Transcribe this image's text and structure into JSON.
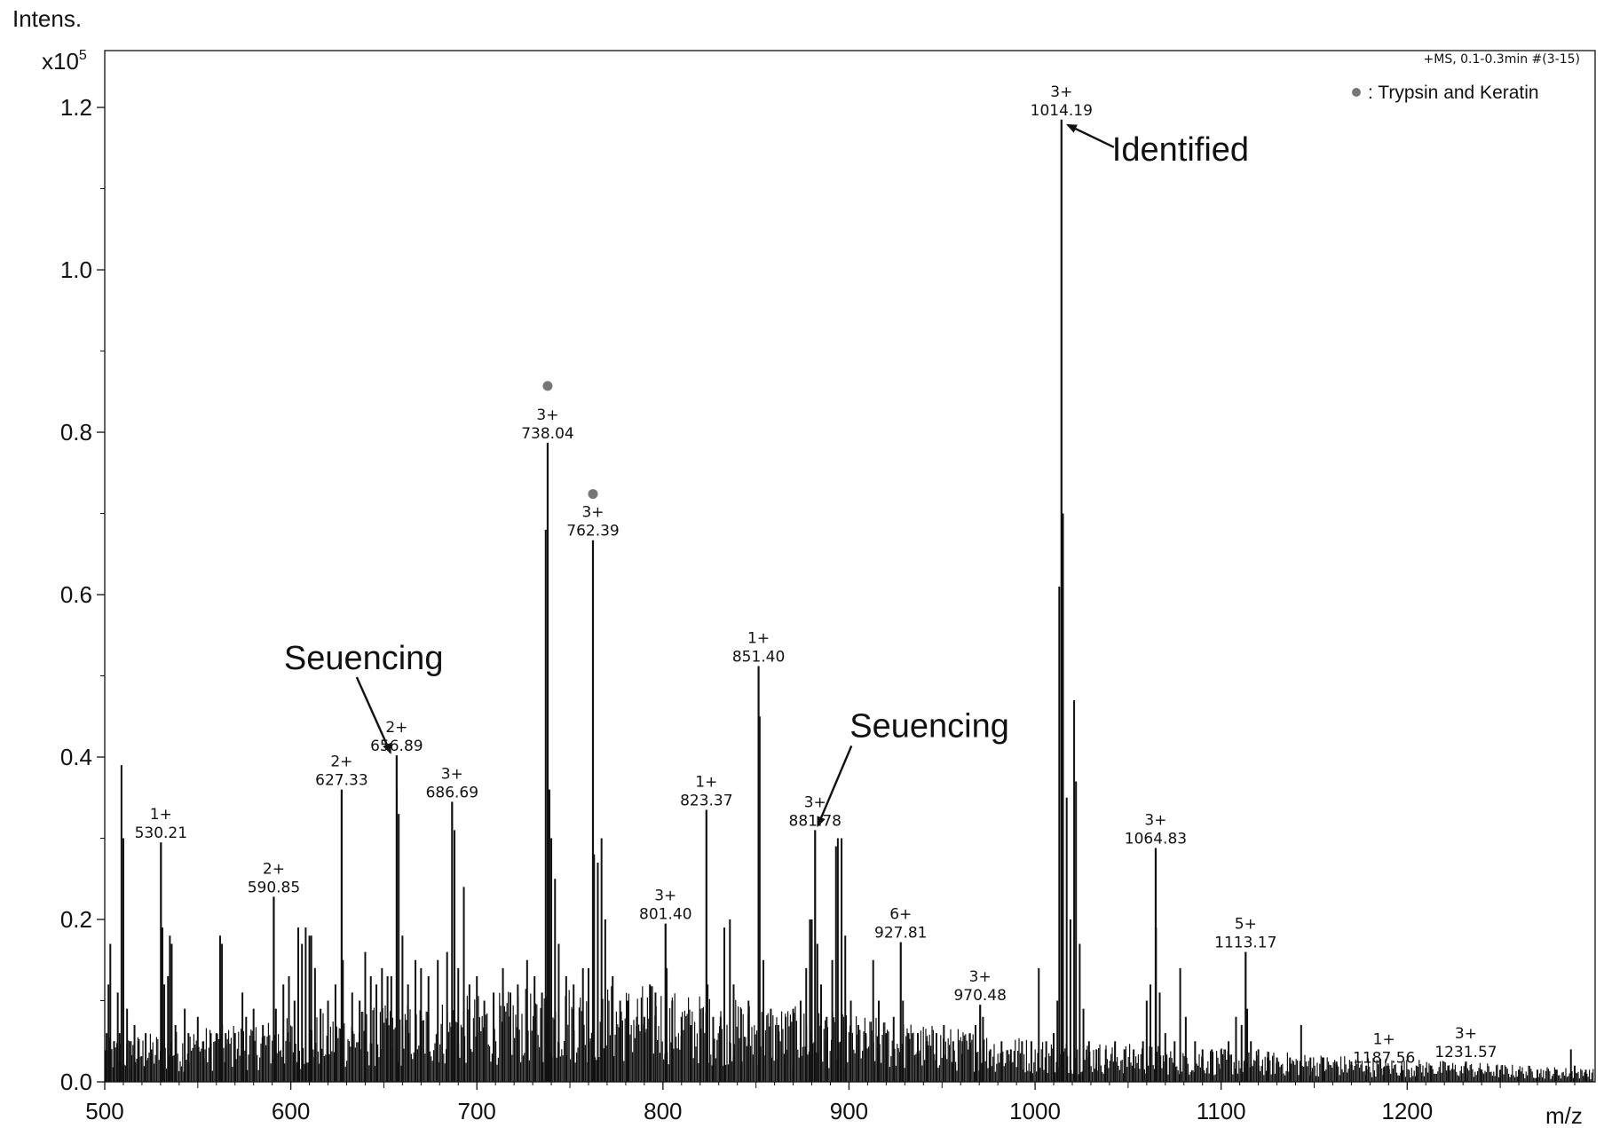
{
  "chart_data": {
    "type": "bar",
    "title": "",
    "xlabel": "m/z",
    "ylabel": "Intens.",
    "y_multiplier": "x10",
    "y_multiplier_exp": "5",
    "xlim": [
      500,
      1301
    ],
    "ylim": [
      0,
      1.27
    ],
    "x_ticks": [
      {
        "value": 500,
        "label": "500"
      },
      {
        "value": 600,
        "label": "600"
      },
      {
        "value": 700,
        "label": "700"
      },
      {
        "value": 800,
        "label": "800"
      },
      {
        "value": 900,
        "label": "900"
      },
      {
        "value": 1000,
        "label": "1000"
      },
      {
        "value": 1100,
        "label": "1100"
      },
      {
        "value": 1200,
        "label": "1200"
      }
    ],
    "y_ticks": [
      {
        "value": 0.0,
        "label": "0.0"
      },
      {
        "value": 0.2,
        "label": "0.2"
      },
      {
        "value": 0.4,
        "label": "0.4"
      },
      {
        "value": 0.6,
        "label": "0.6"
      },
      {
        "value": 0.8,
        "label": "0.8"
      },
      {
        "value": 1.0,
        "label": "1.0"
      },
      {
        "value": 1.2,
        "label": "1.2"
      }
    ],
    "scan_info": "+MS, 0.1-0.3min #(3-15)",
    "legend": {
      "marker": "●",
      "label": ": Trypsin and Keratin",
      "position": "top-right"
    },
    "labeled_peaks": [
      {
        "mz": 530.21,
        "intensity": 0.295,
        "charge": "1+",
        "label": "530.21"
      },
      {
        "mz": 590.85,
        "intensity": 0.228,
        "charge": "2+",
        "label": "590.85"
      },
      {
        "mz": 627.33,
        "intensity": 0.36,
        "charge": "2+",
        "label": "627.33"
      },
      {
        "mz": 656.89,
        "intensity": 0.402,
        "charge": "2+",
        "label": "656.89"
      },
      {
        "mz": 686.69,
        "intensity": 0.345,
        "charge": "3+",
        "label": "686.69"
      },
      {
        "mz": 738.04,
        "intensity": 0.787,
        "charge": "3+",
        "label": "738.04",
        "marked": true
      },
      {
        "mz": 762.39,
        "intensity": 0.667,
        "charge": "3+",
        "label": "762.39",
        "marked": true
      },
      {
        "mz": 801.4,
        "intensity": 0.195,
        "charge": "3+",
        "label": "801.40"
      },
      {
        "mz": 823.37,
        "intensity": 0.335,
        "charge": "1+",
        "label": "823.37"
      },
      {
        "mz": 851.4,
        "intensity": 0.512,
        "charge": "1+",
        "label": "851.40"
      },
      {
        "mz": 881.78,
        "intensity": 0.31,
        "charge": "3+",
        "label": "881.78"
      },
      {
        "mz": 927.81,
        "intensity": 0.172,
        "charge": "6+",
        "label": "927.81"
      },
      {
        "mz": 970.48,
        "intensity": 0.095,
        "charge": "3+",
        "label": "970.48"
      },
      {
        "mz": 1014.19,
        "intensity": 1.185,
        "charge": "3+",
        "label": "1014.19"
      },
      {
        "mz": 1064.83,
        "intensity": 0.288,
        "charge": "3+",
        "label": "1064.83"
      },
      {
        "mz": 1113.17,
        "intensity": 0.16,
        "charge": "5+",
        "label": "1113.17"
      },
      {
        "mz": 1187.56,
        "intensity": 0.018,
        "charge": "1+",
        "label": "1187.56"
      },
      {
        "mz": 1231.57,
        "intensity": 0.025,
        "charge": "3+",
        "label": "1231.57"
      }
    ],
    "other_peaks": [
      [
        501,
        0.06
      ],
      [
        502,
        0.12
      ],
      [
        503,
        0.17
      ],
      [
        505,
        0.05
      ],
      [
        507,
        0.11
      ],
      [
        508,
        0.06
      ],
      [
        509,
        0.39
      ],
      [
        510,
        0.3
      ],
      [
        512,
        0.09
      ],
      [
        514,
        0.05
      ],
      [
        516,
        0.07
      ],
      [
        518,
        0.05
      ],
      [
        522,
        0.06
      ],
      [
        525,
        0.04
      ],
      [
        531,
        0.19
      ],
      [
        532,
        0.12
      ],
      [
        534,
        0.13
      ],
      [
        535,
        0.18
      ],
      [
        536,
        0.17
      ],
      [
        538,
        0.07
      ],
      [
        543,
        0.09
      ],
      [
        545,
        0.06
      ],
      [
        550,
        0.08
      ],
      [
        553,
        0.05
      ],
      [
        557,
        0.06
      ],
      [
        560,
        0.06
      ],
      [
        562,
        0.18
      ],
      [
        563,
        0.17
      ],
      [
        565,
        0.06
      ],
      [
        570,
        0.06
      ],
      [
        574,
        0.11
      ],
      [
        576,
        0.08
      ],
      [
        580,
        0.09
      ],
      [
        585,
        0.07
      ],
      [
        592,
        0.09
      ],
      [
        596,
        0.12
      ],
      [
        599,
        0.13
      ],
      [
        602,
        0.1
      ],
      [
        604,
        0.19
      ],
      [
        606,
        0.17
      ],
      [
        608,
        0.19
      ],
      [
        610,
        0.18
      ],
      [
        611,
        0.18
      ],
      [
        613,
        0.14
      ],
      [
        616,
        0.09
      ],
      [
        620,
        0.1
      ],
      [
        624,
        0.12
      ],
      [
        628,
        0.15
      ],
      [
        633,
        0.11
      ],
      [
        637,
        0.1
      ],
      [
        640,
        0.16
      ],
      [
        643,
        0.13
      ],
      [
        646,
        0.12
      ],
      [
        649,
        0.14
      ],
      [
        652,
        0.13
      ],
      [
        654,
        0.13
      ],
      [
        657,
        0.36
      ],
      [
        658,
        0.33
      ],
      [
        660,
        0.18
      ],
      [
        663,
        0.12
      ],
      [
        667,
        0.15
      ],
      [
        670,
        0.14
      ],
      [
        674,
        0.13
      ],
      [
        679,
        0.15
      ],
      [
        684,
        0.16
      ],
      [
        688,
        0.31
      ],
      [
        690,
        0.14
      ],
      [
        693,
        0.24
      ],
      [
        696,
        0.12
      ],
      [
        700,
        0.13
      ],
      [
        704,
        0.1
      ],
      [
        709,
        0.11
      ],
      [
        714,
        0.14
      ],
      [
        718,
        0.11
      ],
      [
        722,
        0.12
      ],
      [
        727,
        0.15
      ],
      [
        731,
        0.13
      ],
      [
        735,
        0.11
      ],
      [
        737,
        0.68
      ],
      [
        739,
        0.36
      ],
      [
        740,
        0.3
      ],
      [
        742,
        0.25
      ],
      [
        744,
        0.17
      ],
      [
        748,
        0.13
      ],
      [
        752,
        0.12
      ],
      [
        757,
        0.14
      ],
      [
        760,
        0.14
      ],
      [
        763,
        0.28
      ],
      [
        765,
        0.27
      ],
      [
        767,
        0.3
      ],
      [
        769,
        0.2
      ],
      [
        773,
        0.13
      ],
      [
        777,
        0.1
      ],
      [
        781,
        0.1
      ],
      [
        786,
        0.08
      ],
      [
        790,
        0.08
      ],
      [
        793,
        0.12
      ],
      [
        796,
        0.11
      ],
      [
        802,
        0.14
      ],
      [
        805,
        0.1
      ],
      [
        810,
        0.08
      ],
      [
        815,
        0.07
      ],
      [
        820,
        0.09
      ],
      [
        824,
        0.12
      ],
      [
        827,
        0.08
      ],
      [
        831,
        0.08
      ],
      [
        833,
        0.19
      ],
      [
        836,
        0.2
      ],
      [
        838,
        0.12
      ],
      [
        842,
        0.09
      ],
      [
        846,
        0.1
      ],
      [
        852,
        0.45
      ],
      [
        854,
        0.15
      ],
      [
        858,
        0.09
      ],
      [
        862,
        0.07
      ],
      [
        866,
        0.08
      ],
      [
        870,
        0.09
      ],
      [
        874,
        0.1
      ],
      [
        877,
        0.14
      ],
      [
        879,
        0.2
      ],
      [
        880,
        0.2
      ],
      [
        883,
        0.17
      ],
      [
        885,
        0.12
      ],
      [
        888,
        0.08
      ],
      [
        891,
        0.15
      ],
      [
        893,
        0.29
      ],
      [
        894,
        0.3
      ],
      [
        896,
        0.3
      ],
      [
        898,
        0.18
      ],
      [
        901,
        0.1
      ],
      [
        905,
        0.07
      ],
      [
        909,
        0.06
      ],
      [
        913,
        0.15
      ],
      [
        916,
        0.1
      ],
      [
        920,
        0.06
      ],
      [
        924,
        0.08
      ],
      [
        929,
        0.1
      ],
      [
        932,
        0.06
      ],
      [
        937,
        0.06
      ],
      [
        942,
        0.05
      ],
      [
        947,
        0.06
      ],
      [
        951,
        0.07
      ],
      [
        956,
        0.05
      ],
      [
        961,
        0.05
      ],
      [
        965,
        0.06
      ],
      [
        968,
        0.07
      ],
      [
        972,
        0.08
      ],
      [
        976,
        0.04
      ],
      [
        982,
        0.05
      ],
      [
        987,
        0.04
      ],
      [
        993,
        0.05
      ],
      [
        998,
        0.05
      ],
      [
        1002,
        0.14
      ],
      [
        1006,
        0.05
      ],
      [
        1010,
        0.06
      ],
      [
        1012,
        0.1
      ],
      [
        1013,
        0.61
      ],
      [
        1015,
        0.7
      ],
      [
        1017,
        0.35
      ],
      [
        1019,
        0.2
      ],
      [
        1021,
        0.47
      ],
      [
        1022,
        0.37
      ],
      [
        1024,
        0.17
      ],
      [
        1026,
        0.09
      ],
      [
        1029,
        0.05
      ],
      [
        1033,
        0.04
      ],
      [
        1038,
        0.04
      ],
      [
        1043,
        0.05
      ],
      [
        1048,
        0.04
      ],
      [
        1053,
        0.04
      ],
      [
        1058,
        0.05
      ],
      [
        1060,
        0.1
      ],
      [
        1062,
        0.12
      ],
      [
        1065,
        0.19
      ],
      [
        1067,
        0.11
      ],
      [
        1070,
        0.06
      ],
      [
        1075,
        0.05
      ],
      [
        1078,
        0.14
      ],
      [
        1081,
        0.08
      ],
      [
        1086,
        0.05
      ],
      [
        1090,
        0.04
      ],
      [
        1095,
        0.04
      ],
      [
        1100,
        0.04
      ],
      [
        1104,
        0.05
      ],
      [
        1108,
        0.08
      ],
      [
        1111,
        0.07
      ],
      [
        1114,
        0.09
      ],
      [
        1116,
        0.05
      ],
      [
        1120,
        0.04
      ],
      [
        1125,
        0.03
      ],
      [
        1130,
        0.03
      ],
      [
        1137,
        0.03
      ],
      [
        1143,
        0.07
      ],
      [
        1148,
        0.03
      ],
      [
        1155,
        0.03
      ],
      [
        1162,
        0.025
      ],
      [
        1170,
        0.025
      ],
      [
        1178,
        0.02
      ],
      [
        1190,
        0.02
      ],
      [
        1197,
        0.02
      ],
      [
        1205,
        0.02
      ],
      [
        1213,
        0.02
      ],
      [
        1222,
        0.02
      ],
      [
        1240,
        0.015
      ],
      [
        1250,
        0.015
      ],
      [
        1260,
        0.015
      ],
      [
        1270,
        0.015
      ],
      [
        1280,
        0.015
      ],
      [
        1288,
        0.04
      ],
      [
        1290,
        0.02
      ],
      [
        1296,
        0.015
      ]
    ],
    "markers": [
      {
        "mz": 738.04,
        "intensity": 0.857
      },
      {
        "mz": 762.39,
        "intensity": 0.724
      }
    ],
    "annotations": [
      {
        "text": "Identified",
        "target_mz": 1014.19,
        "target_intensity": 1.185
      },
      {
        "text": "Seuencing",
        "target_mz": 656.89,
        "target_intensity": 0.4
      },
      {
        "text": "Seuencing",
        "target_mz": 881.78,
        "target_intensity": 0.31
      }
    ]
  }
}
